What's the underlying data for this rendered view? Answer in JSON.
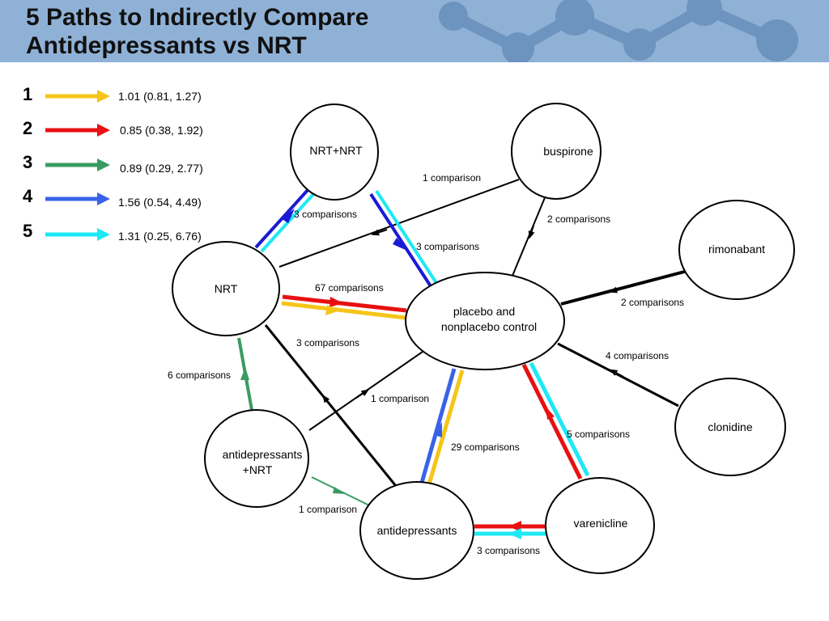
{
  "title": {
    "line1": "5 Paths to Indirectly Compare",
    "line2": "Antidepressants vs NRT"
  },
  "colors": {
    "path1": "#f5c518",
    "path2": "#e81010",
    "path3": "#3a9b62",
    "path4": "#3a62e8",
    "path5": "#1ee8f5",
    "edge": "#000000",
    "header_bg": "#8fb1d6",
    "header_molecule": "#6d93bf"
  },
  "legend": [
    {
      "num": "1",
      "value": "1.01 (0.81, 1.27)",
      "color": "path1"
    },
    {
      "num": "2",
      "value": "0.85 (0.38, 1.92)",
      "color": "path2"
    },
    {
      "num": "3",
      "value": "0.89 (0.29, 2.77)",
      "color": "path3"
    },
    {
      "num": "4",
      "value": "1.56 (0.54, 4.49)",
      "color": "path4"
    },
    {
      "num": "5",
      "value": "1.31 (0.25, 6.76)",
      "color": "path5"
    }
  ],
  "nodes": {
    "nrtnrt": "NRT+NRT",
    "buspirone": "buspirone",
    "rimonabant": "rimonabant",
    "nrt": "NRT",
    "placebo_line1": "placebo and",
    "placebo_line2": "nonplacebo control",
    "clonidine": "clonidine",
    "adnrt_line1": "antidepressants",
    "adnrt_line2": "+NRT",
    "antidepressants": "antidepressants",
    "varenicline": "varenicline"
  },
  "edges": {
    "buspirone_nrt": "1 comparison",
    "nrtnrt_nrt": "3 comparisons",
    "buspirone_placebo": "2 comparisons",
    "nrtnrt_placebo": "3 comparisons",
    "nrt_placebo": "67 comparisons",
    "rimonabant_placebo": "2 comparisons",
    "nrt_antidepressants": "3 comparisons",
    "clonidine_placebo": "4 comparisons",
    "adnrt_nrt": "6 comparisons",
    "adnrt_placebo": "1 comparison",
    "antidepressants_placebo": "29 comparisons",
    "varenicline_placebo": "5 comparisons",
    "adnrt_antidepressants": "1 comparison",
    "varenicline_antidepressants": "3 comparisons"
  }
}
